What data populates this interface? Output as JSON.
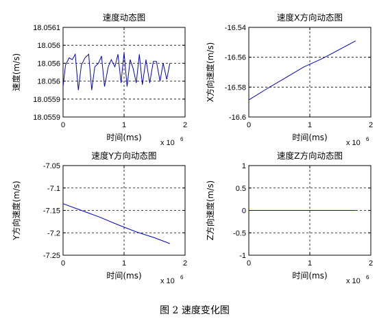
{
  "figure_caption": "图 2 速度变化图",
  "chart_data": [
    {
      "type": "line",
      "title": "速度动态图",
      "xlabel": "时间(ms)",
      "ylabel": "速度(m/s)",
      "x_multiplier": "x 10",
      "x_multiplier_exp": "6",
      "xlim": [
        0,
        2
      ],
      "ylim": [
        18.05585,
        18.0561
      ],
      "xticks": [
        0,
        1,
        2
      ],
      "xtick_labels": [
        "0",
        "1",
        "2"
      ],
      "yticks": [
        18.05585,
        18.0559,
        18.05595,
        18.056,
        18.05605,
        18.0561
      ],
      "ytick_labels": [
        "18.0559",
        "18.0559",
        "18.056",
        "18.056",
        "18.056",
        "18.0561"
      ],
      "grid": true,
      "color": "#0000cc",
      "series": [
        {
          "x": [
            0,
            0.04,
            0.1,
            0.15,
            0.2,
            0.25,
            0.3,
            0.36,
            0.42,
            0.47,
            0.52,
            0.58,
            0.63,
            0.68,
            0.74,
            0.79,
            0.85,
            0.9,
            0.95,
            1.0,
            1.05,
            1.1,
            1.15,
            1.2,
            1.25,
            1.3,
            1.36,
            1.42,
            1.48,
            1.53,
            1.59,
            1.64,
            1.7,
            1.75
          ],
          "y": [
            18.055935,
            18.055995,
            18.056015,
            18.05601,
            18.056025,
            18.055925,
            18.055995,
            18.056015,
            18.056025,
            18.055925,
            18.05599,
            18.056,
            18.05602,
            18.055935,
            18.05599,
            18.05601,
            18.05599,
            18.056025,
            18.055945,
            18.05603,
            18.055935,
            18.05601,
            18.055985,
            18.055945,
            18.056025,
            18.05594,
            18.05601,
            18.055945,
            18.056005,
            18.056005,
            18.05595,
            18.056,
            18.055955,
            18.056
          ]
        }
      ]
    },
    {
      "type": "line",
      "title": "速度X方向动态图",
      "xlabel": "时间(ms)",
      "ylabel": "X方向速度(m/s)",
      "x_multiplier": "x 10",
      "x_multiplier_exp": "6",
      "xlim": [
        0,
        2
      ],
      "ylim": [
        -16.6,
        -16.54
      ],
      "xticks": [
        0,
        1,
        2
      ],
      "xtick_labels": [
        "0",
        "1",
        "2"
      ],
      "yticks": [
        -16.6,
        -16.58,
        -16.56,
        -16.54
      ],
      "ytick_labels": [
        "-16.6",
        "-16.58",
        "-16.56",
        "-16.54"
      ],
      "grid": true,
      "color": "#0000cc",
      "series": [
        {
          "x": [
            0,
            0.3,
            0.6,
            0.9,
            1.2,
            1.5,
            1.75
          ],
          "y": [
            -16.5886,
            -16.581,
            -16.5738,
            -16.5665,
            -16.561,
            -16.5545,
            -16.549
          ]
        }
      ]
    },
    {
      "type": "line",
      "title": "速度Y方向动态图",
      "xlabel": "时间(ms)",
      "ylabel": "Y方向速度(m/s)",
      "x_multiplier": "x 10",
      "x_multiplier_exp": "6",
      "xlim": [
        0,
        2
      ],
      "ylim": [
        -7.25,
        -7.05
      ],
      "xticks": [
        0,
        1,
        2
      ],
      "xtick_labels": [
        "0",
        "1",
        "2"
      ],
      "yticks": [
        -7.25,
        -7.2,
        -7.15,
        -7.1,
        -7.05
      ],
      "ytick_labels": [
        "-7.25",
        "-7.2",
        "-7.15",
        "-7.1",
        "-7.05"
      ],
      "grid": true,
      "color": "#0000cc",
      "series": [
        {
          "x": [
            0,
            0.3,
            0.6,
            0.9,
            1.2,
            1.5,
            1.75
          ],
          "y": [
            -7.135,
            -7.15,
            -7.165,
            -7.182,
            -7.198,
            -7.211,
            -7.224
          ]
        }
      ]
    },
    {
      "type": "line",
      "title": "速度Z方向动态图",
      "xlabel": "时间(ms)",
      "ylabel": "Z方向速度(m/s)",
      "x_multiplier": "x 10",
      "x_multiplier_exp": "6",
      "xlim": [
        0,
        2
      ],
      "ylim": [
        -1,
        1
      ],
      "xticks": [
        0,
        1,
        2
      ],
      "xtick_labels": [
        "0",
        "1",
        "2"
      ],
      "yticks": [
        -1,
        -0.5,
        0,
        0.5,
        1
      ],
      "ytick_labels": [
        "-1",
        "-0.5",
        "0",
        "0.5",
        "1"
      ],
      "grid": true,
      "color": "#0000cc",
      "series": [
        {
          "x": [
            0,
            1.75
          ],
          "y": [
            0,
            0
          ]
        }
      ]
    }
  ]
}
